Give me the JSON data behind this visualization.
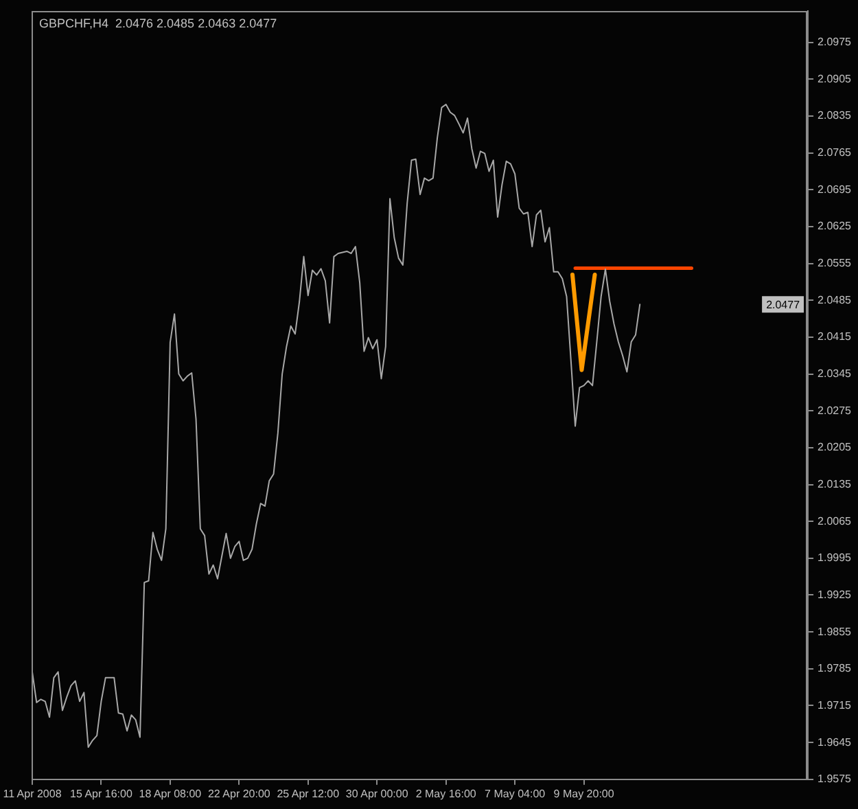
{
  "chart_data": {
    "type": "line",
    "title": "GBPCHF,H4  2.0476 2.0485 2.0463 2.0477",
    "categories": [
      "11 Apr 2008",
      null,
      null,
      null,
      null,
      null,
      null,
      null,
      null,
      null,
      null,
      null,
      null,
      null,
      null,
      null,
      "15 Apr 16:00",
      null,
      null,
      null,
      null,
      null,
      null,
      null,
      null,
      null,
      null,
      null,
      null,
      null,
      null,
      null,
      "18 Apr 08:00",
      null,
      null,
      null,
      null,
      null,
      null,
      null,
      null,
      null,
      null,
      null,
      null,
      null,
      null,
      null,
      "22 Apr 20:00",
      null,
      null,
      null,
      null,
      null,
      null,
      null,
      null,
      null,
      null,
      null,
      null,
      null,
      null,
      null,
      "25 Apr 12:00",
      null,
      null,
      null,
      null,
      null,
      null,
      null,
      null,
      null,
      null,
      null,
      null,
      null,
      null,
      null,
      "30 Apr 00:00",
      null,
      null,
      null,
      null,
      null,
      null,
      null,
      null,
      null,
      null,
      null,
      null,
      null,
      null,
      null,
      "2 May 16:00",
      null,
      null,
      null,
      null,
      null,
      null,
      null,
      null,
      null,
      null,
      null,
      null,
      null,
      null,
      null,
      "7 May 04:00",
      null,
      null,
      null,
      null,
      null,
      null,
      null,
      null,
      null,
      null,
      null,
      null,
      null,
      null,
      null,
      "9 May 20:00",
      null,
      null,
      null,
      null,
      null,
      null,
      null,
      null,
      null,
      null,
      null,
      null,
      null,
      null,
      null,
      null,
      null,
      null,
      null,
      null,
      null,
      null,
      null,
      null,
      null,
      null,
      null,
      null,
      null,
      null,
      null,
      null,
      null,
      null,
      null,
      null,
      null,
      null,
      null,
      null,
      null,
      null,
      null,
      null,
      null,
      null,
      null,
      null,
      null,
      null,
      null,
      null
    ],
    "series": [
      {
        "color": "#a8a8a8",
        "values": [
          1.9779,
          1.9721,
          1.9727,
          1.9723,
          1.9693,
          1.9768,
          1.9779,
          1.9706,
          1.9731,
          1.9753,
          1.9762,
          1.9723,
          1.974,
          1.9636,
          1.9649,
          1.9658,
          1.9723,
          1.9768,
          1.9768,
          1.9768,
          1.9701,
          1.9699,
          1.9667,
          1.9697,
          1.9688,
          1.9655,
          1.9949,
          1.9952,
          2.0044,
          2.0012,
          1.9991,
          2.0051,
          2.0405,
          2.0459,
          2.0345,
          2.0332,
          2.0341,
          2.0347,
          2.0259,
          2.0051,
          2.0038,
          1.9965,
          1.9982,
          1.9956,
          1.9999,
          2.0042,
          1.9995,
          2.0017,
          2.0027,
          1.9991,
          1.9995,
          2.0012,
          2.006,
          2.0099,
          2.0094,
          2.0142,
          2.0155,
          2.0233,
          2.0345,
          2.0397,
          2.0436,
          2.0421,
          2.0483,
          2.0568,
          2.0494,
          2.0542,
          2.0533,
          2.0545,
          2.0522,
          2.0442,
          2.0568,
          2.0574,
          2.0576,
          2.0578,
          2.0574,
          2.0587,
          2.0518,
          2.0388,
          2.0414,
          2.0393,
          2.041,
          2.0336,
          2.0397,
          2.0678,
          2.0604,
          2.0565,
          2.0552,
          2.0669,
          2.0751,
          2.0753,
          2.0686,
          2.0717,
          2.0712,
          2.0717,
          2.0794,
          2.0851,
          2.0857,
          2.0842,
          2.0836,
          2.082,
          2.0803,
          2.0831,
          2.0773,
          2.0736,
          2.0768,
          2.0764,
          2.073,
          2.0751,
          2.0643,
          2.0704,
          2.0749,
          2.0744,
          2.0725,
          2.066,
          2.0649,
          2.0652,
          2.0587,
          2.0647,
          2.0656,
          2.0596,
          2.0623,
          2.0539,
          2.0539,
          2.0526,
          2.0492,
          2.0371,
          2.0246,
          2.0319,
          2.0323,
          2.0332,
          2.0323,
          2.0406,
          2.0492,
          2.0544,
          2.0483,
          2.044,
          2.0406,
          2.038,
          2.0349,
          2.0406,
          2.0419,
          2.0477,
          null,
          null,
          null,
          null,
          null,
          null,
          null,
          null,
          null,
          null,
          null,
          null,
          null,
          null,
          null,
          null,
          null,
          null,
          null,
          null,
          null,
          null,
          null,
          null,
          null,
          null,
          null,
          null,
          null,
          null,
          null,
          null,
          null,
          null,
          null,
          null,
          null,
          null,
          null
        ]
      },
      {
        "color": "#ff4500",
        "values": [
          null,
          null,
          null,
          null,
          null,
          null,
          null,
          null,
          null,
          null,
          null,
          null,
          null,
          null,
          null,
          null,
          null,
          null,
          null,
          null,
          null,
          null,
          null,
          null,
          null,
          null,
          null,
          null,
          null,
          null,
          null,
          null,
          null,
          null,
          null,
          null,
          null,
          null,
          null,
          null,
          null,
          null,
          null,
          null,
          null,
          null,
          null,
          null,
          null,
          null,
          null,
          null,
          null,
          null,
          null,
          null,
          null,
          null,
          null,
          null,
          null,
          null,
          null,
          null,
          null,
          null,
          null,
          null,
          null,
          null,
          null,
          null,
          null,
          null,
          null,
          null,
          null,
          null,
          null,
          null,
          null,
          null,
          null,
          null,
          null,
          null,
          null,
          null,
          null,
          null,
          null,
          null,
          null,
          null,
          null,
          null,
          null,
          null,
          null,
          null,
          null,
          null,
          null,
          null,
          null,
          null,
          null,
          null,
          null,
          null,
          null,
          null,
          null,
          null,
          null,
          null,
          null,
          null,
          null,
          null,
          null,
          null,
          null,
          null,
          null,
          null,
          2.0546,
          2.0546,
          2.0546,
          2.0546,
          2.0546,
          2.0546,
          2.0546,
          2.0546,
          2.0546,
          2.0546,
          2.0546,
          2.0546,
          2.0546,
          2.0546,
          2.0546,
          2.0546,
          2.0546,
          2.0546,
          2.0546,
          2.0546,
          2.0546,
          2.0546,
          2.0546,
          2.0546,
          2.0546,
          2.0546,
          2.0546,
          2.0546,
          null,
          null,
          null,
          null,
          null,
          null,
          null,
          null,
          null,
          null,
          null,
          null,
          null,
          null,
          null,
          null,
          null,
          null,
          null,
          null,
          null,
          null,
          null,
          null,
          null,
          null,
          null
        ]
      }
    ],
    "ylim": [
      1.9575,
      2.1035
    ],
    "yticks": [
      2.0975,
      2.0905,
      2.0835,
      2.0765,
      2.0695,
      2.0625,
      2.0555,
      2.0485,
      2.0415,
      2.0345,
      2.0275,
      2.0205,
      2.0135,
      2.0065,
      1.9995,
      1.9925,
      1.9855,
      1.9785,
      1.9715,
      1.9645,
      1.9575
    ],
    "annotations": [
      {
        "text": "2.0477",
        "y": 2.0477
      }
    ]
  }
}
